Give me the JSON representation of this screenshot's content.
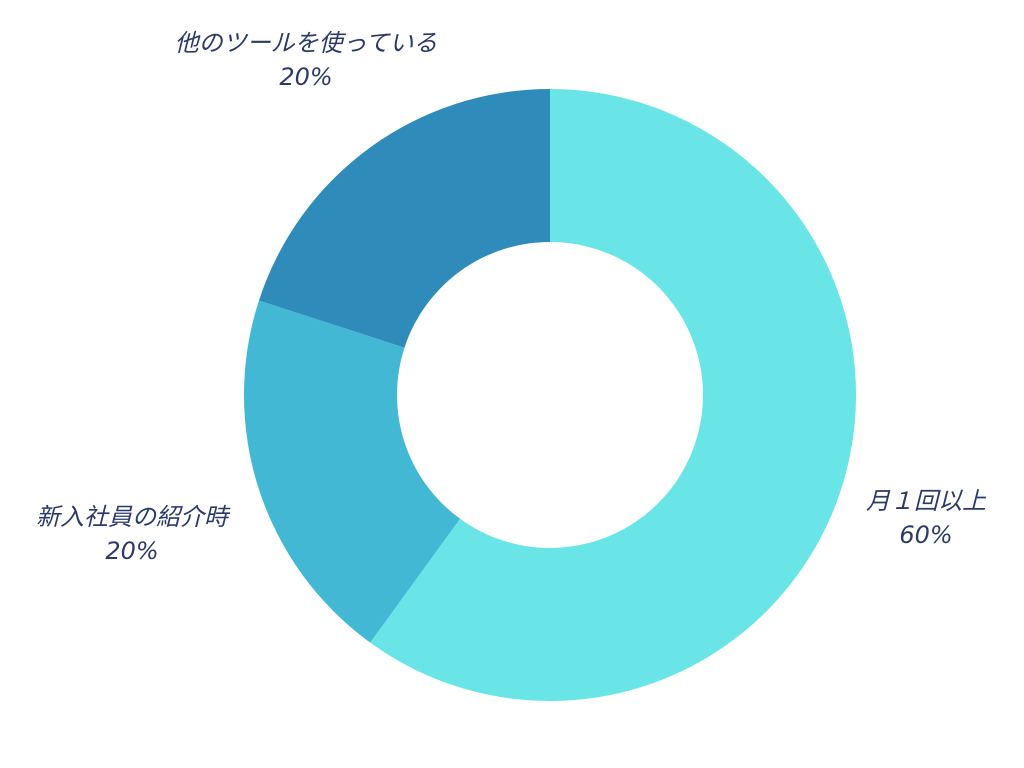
{
  "chart_data": {
    "type": "pie",
    "variant": "donut",
    "title": "",
    "slices": [
      {
        "label": "月１回以上",
        "value": 60,
        "value_label": "60%",
        "color": "#6ae5e7"
      },
      {
        "label": "新入社員の紹介時",
        "value": 20,
        "value_label": "20%",
        "color": "#42b8d5"
      },
      {
        "label": "他のツールを使っている",
        "value": 20,
        "value_label": "20%",
        "color": "#2e8bba"
      }
    ],
    "start_angle": "12 o'clock",
    "direction": "clockwise",
    "legend": "none",
    "label_placement": "outside"
  }
}
